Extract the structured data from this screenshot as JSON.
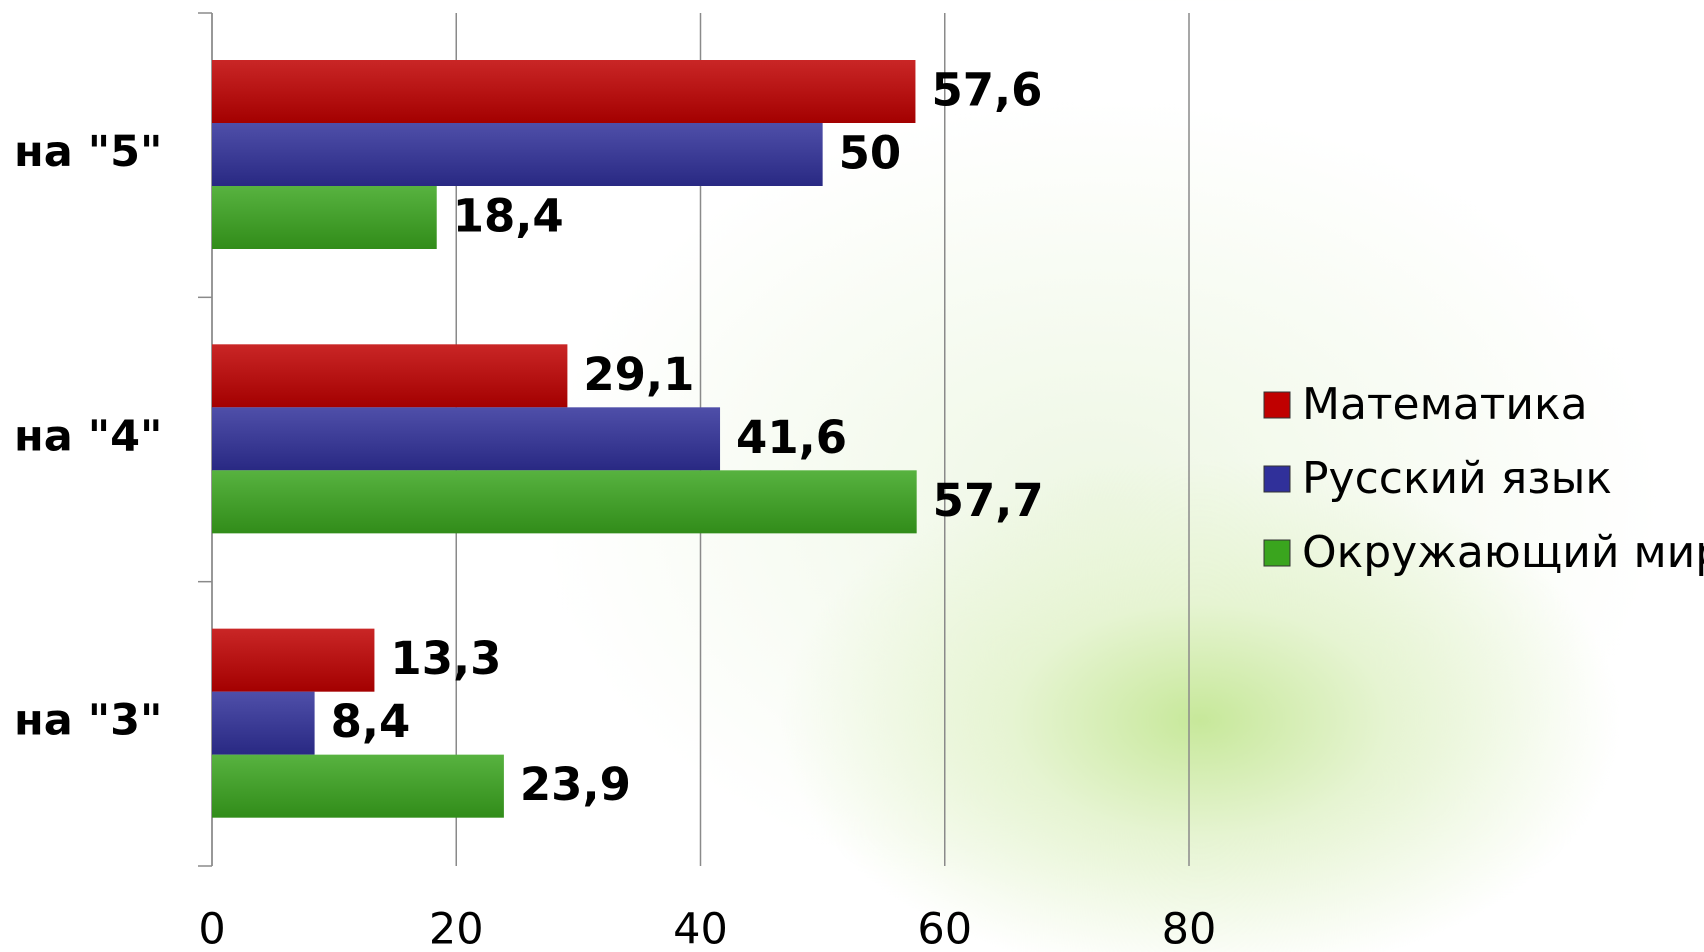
{
  "chart_data": {
    "type": "bar",
    "orientation": "horizontal",
    "categories": [
      "на \"5\"",
      "на \"4\"",
      "на \"3\""
    ],
    "series": [
      {
        "name": "Математика",
        "color": "#c00000",
        "values": [
          57.6,
          29.1,
          13.3
        ],
        "value_labels": [
          "57,6",
          "29,1",
          "13,3"
        ]
      },
      {
        "name": "Русский язык",
        "color": "#30309a",
        "values": [
          50,
          41.6,
          8.4
        ],
        "value_labels": [
          "50",
          "41,6",
          "8,4"
        ]
      },
      {
        "name": "Окружающий мир",
        "color": "#3aa51e",
        "values": [
          18.4,
          57.7,
          23.9
        ],
        "value_labels": [
          "18,4",
          "57,7",
          "23,9"
        ]
      }
    ],
    "xlim": [
      0,
      80
    ],
    "xticks": [
      0,
      20,
      40,
      60,
      80
    ],
    "grid": true,
    "legend": "right"
  }
}
